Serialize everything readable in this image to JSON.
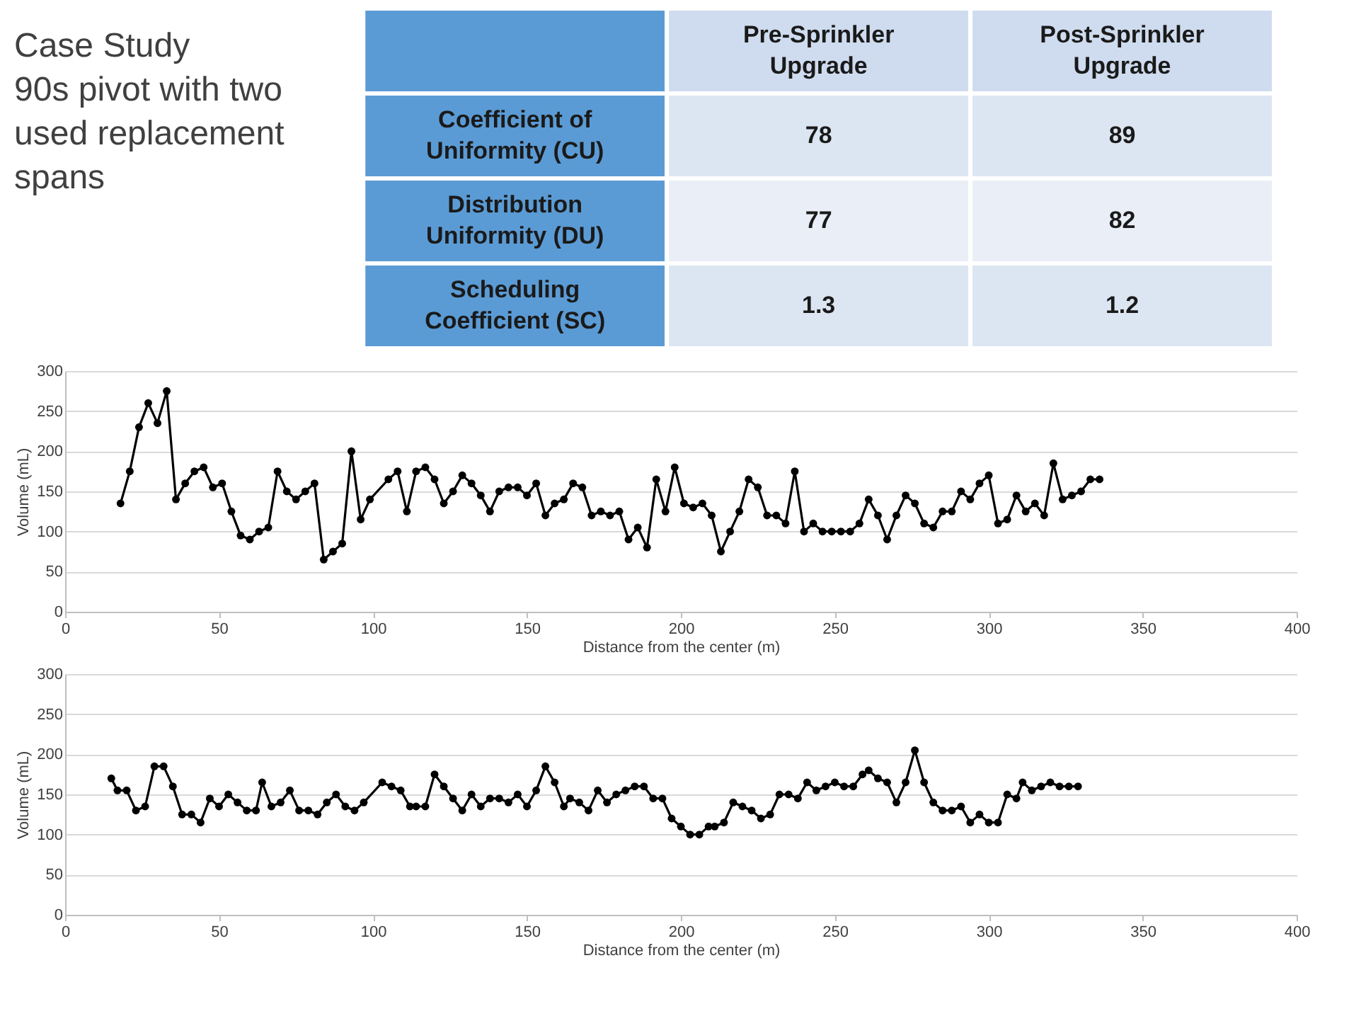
{
  "chart_data": [
    {
      "type": "heatmap",
      "annotations": [
        "Case Study"
      ],
      "subtitle": "90s pivot with two used replacement spans",
      "categories": [
        "Pre-Sprinkler Upgrade",
        "Post-Sprinkler Upgrade"
      ],
      "y_categories": [
        "Coefficient of Uniformity (CU)",
        "Distribution Uniformity (DU)",
        "Scheduling Coefficient (SC)"
      ],
      "cells": [
        [
          78,
          89
        ],
        [
          77,
          82
        ],
        [
          1.3,
          1.2
        ]
      ],
      "data_labels": true
    },
    {
      "type": "line",
      "xlabel": "Distance from the center (m)",
      "ylabel": "Volume (mL)",
      "x": [
        18,
        21,
        24,
        27,
        30,
        33,
        36,
        39,
        42,
        45,
        48,
        51,
        54,
        57,
        60,
        63,
        66,
        69,
        72,
        75,
        78,
        81,
        84,
        87,
        90,
        93,
        96,
        99,
        105,
        108,
        111,
        114,
        117,
        120,
        123,
        126,
        129,
        132,
        135,
        138,
        141,
        144,
        147,
        150,
        153,
        156,
        159,
        162,
        165,
        168,
        171,
        174,
        177,
        180,
        183,
        186,
        189,
        192,
        195,
        198,
        201,
        204,
        207,
        210,
        213,
        216,
        219,
        222,
        225,
        228,
        231,
        234,
        237,
        240,
        243,
        246,
        249,
        252,
        255,
        258,
        261,
        264,
        267,
        270,
        273,
        276,
        279,
        282,
        285,
        288,
        291,
        294,
        297,
        300,
        303,
        306,
        309,
        312,
        315,
        318,
        321,
        324,
        327,
        330,
        333,
        336
      ],
      "series": [
        {
          "color": "#000000",
          "values": [
            135,
            175,
            230,
            260,
            235,
            275,
            140,
            160,
            175,
            180,
            155,
            160,
            125,
            95,
            90,
            100,
            105,
            175,
            150,
            140,
            150,
            160,
            65,
            75,
            85,
            200,
            115,
            140,
            165,
            175,
            125,
            175,
            180,
            165,
            135,
            150,
            170,
            160,
            145,
            125,
            150,
            155,
            155,
            145,
            160,
            120,
            135,
            140,
            160,
            155,
            120,
            125,
            120,
            125,
            90,
            105,
            80,
            165,
            125,
            180,
            135,
            130,
            135,
            120,
            75,
            100,
            125,
            165,
            155,
            120,
            120,
            110,
            175,
            100,
            110,
            100,
            100,
            100,
            100,
            110,
            140,
            120,
            90,
            120,
            145,
            135,
            110,
            105,
            125,
            125,
            150,
            140,
            160,
            170,
            110,
            115,
            145,
            125,
            135,
            120,
            185,
            140,
            145,
            150,
            165,
            165
          ]
        }
      ],
      "xlim": [
        0,
        400
      ],
      "xticks": [
        0,
        50,
        100,
        150,
        200,
        250,
        300,
        350,
        400
      ],
      "ylim": [
        0,
        300
      ],
      "yticks": [
        0,
        50,
        100,
        150,
        200,
        250,
        300
      ],
      "grid": "y",
      "marker": "circle",
      "line_style": "solid"
    },
    {
      "type": "line",
      "xlabel": "Distance from the center (m)",
      "ylabel": "Volume (mL)",
      "x": [
        15,
        17,
        20,
        23,
        26,
        29,
        32,
        35,
        38,
        41,
        44,
        47,
        50,
        53,
        56,
        59,
        62,
        64,
        67,
        70,
        73,
        76,
        79,
        82,
        85,
        88,
        91,
        94,
        97,
        103,
        106,
        109,
        112,
        114,
        117,
        120,
        123,
        126,
        129,
        132,
        135,
        138,
        141,
        144,
        147,
        150,
        153,
        156,
        159,
        162,
        164,
        167,
        170,
        173,
        176,
        179,
        182,
        185,
        188,
        191,
        194,
        197,
        200,
        203,
        206,
        209,
        211,
        214,
        217,
        220,
        223,
        226,
        229,
        232,
        235,
        238,
        241,
        244,
        247,
        250,
        253,
        256,
        259,
        261,
        264,
        267,
        270,
        273,
        276,
        279,
        282,
        285,
        288,
        291,
        294,
        297,
        300,
        303,
        306,
        309,
        311,
        314,
        317,
        320,
        323,
        326,
        329
      ],
      "series": [
        {
          "color": "#000000",
          "values": [
            170,
            155,
            155,
            130,
            135,
            185,
            185,
            160,
            125,
            125,
            115,
            145,
            135,
            150,
            140,
            130,
            130,
            165,
            135,
            140,
            155,
            130,
            130,
            125,
            140,
            150,
            135,
            130,
            140,
            165,
            160,
            155,
            135,
            135,
            135,
            175,
            160,
            145,
            130,
            150,
            135,
            145,
            145,
            140,
            150,
            135,
            155,
            185,
            165,
            135,
            145,
            140,
            130,
            155,
            140,
            150,
            155,
            160,
            160,
            145,
            145,
            120,
            110,
            100,
            100,
            110,
            110,
            115,
            140,
            135,
            130,
            120,
            125,
            150,
            150,
            145,
            165,
            155,
            160,
            165,
            160,
            160,
            175,
            180,
            170,
            165,
            140,
            165,
            205,
            165,
            140,
            130,
            130,
            135,
            115,
            125,
            115,
            115,
            150,
            145,
            165,
            155,
            160,
            165,
            160,
            160,
            160
          ]
        }
      ],
      "xlim": [
        0,
        400
      ],
      "xticks": [
        0,
        50,
        100,
        150,
        200,
        250,
        300,
        350,
        400
      ],
      "ylim": [
        0,
        300
      ],
      "yticks": [
        0,
        50,
        100,
        150,
        200,
        250,
        300
      ],
      "grid": "y",
      "marker": "circle",
      "line_style": "solid"
    }
  ]
}
